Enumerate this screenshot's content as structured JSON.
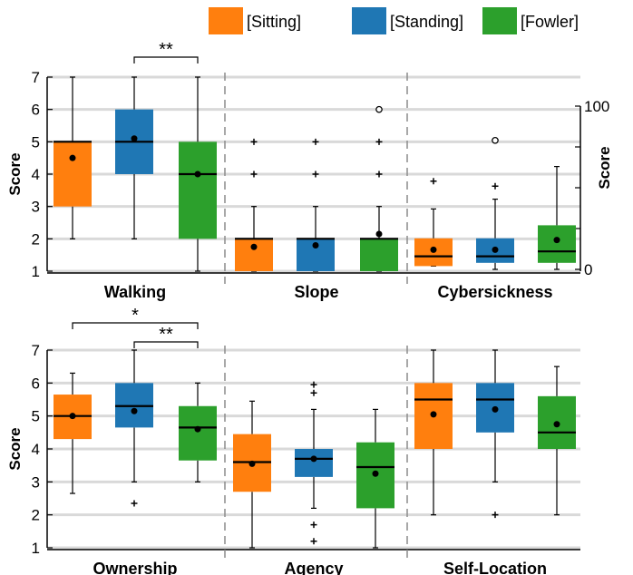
{
  "legend": [
    {
      "label": "[Sitting]",
      "color": "#ff7f0e"
    },
    {
      "label": "[Standing]",
      "color": "#1f77b4"
    },
    {
      "label": "[Fowler]",
      "color": "#2ca02c"
    }
  ],
  "chart_data": [
    {
      "type": "box",
      "ylabel": "Score",
      "right_ylabel": "Score",
      "ylim": [
        1,
        7
      ],
      "yticks": [
        "1",
        "2",
        "3",
        "4",
        "5",
        "6",
        "7"
      ],
      "right_axis": {
        "ylim": [
          0,
          100
        ],
        "ticks": [
          "0",
          "100"
        ],
        "applies_to": "Cybersickness"
      },
      "series": [
        "[Sitting]",
        "[Standing]",
        "[Fowler]"
      ],
      "groups": [
        {
          "label": "Walking",
          "boxes": [
            {
              "series": "[Sitting]",
              "whisker_low": 2,
              "q1": 3,
              "median": 5,
              "q3": 5,
              "whisker_high": 7,
              "mean": 4.5,
              "outliers": []
            },
            {
              "series": "[Standing]",
              "whisker_low": 2,
              "q1": 4,
              "median": 5,
              "q3": 6,
              "whisker_high": 7,
              "mean": 5.1,
              "outliers": []
            },
            {
              "series": "[Fowler]",
              "whisker_low": 1,
              "q1": 2,
              "median": 4,
              "q3": 5,
              "whisker_high": 7,
              "mean": 4.0,
              "outliers": []
            }
          ],
          "significance": [
            {
              "from": "[Standing]",
              "to": "[Fowler]",
              "label": "**"
            }
          ]
        },
        {
          "label": "Slope",
          "boxes": [
            {
              "series": "[Sitting]",
              "whisker_low": 1,
              "q1": 1,
              "median": 2,
              "q3": 2,
              "whisker_high": 3,
              "mean": 1.75,
              "outliers": [
                {
                  "value": 4,
                  "marker": "+"
                },
                {
                  "value": 5,
                  "marker": "+"
                }
              ]
            },
            {
              "series": "[Standing]",
              "whisker_low": 1,
              "q1": 1,
              "median": 2,
              "q3": 2,
              "whisker_high": 3,
              "mean": 1.8,
              "outliers": [
                {
                  "value": 4,
                  "marker": "+"
                },
                {
                  "value": 5,
                  "marker": "+"
                }
              ]
            },
            {
              "series": "[Fowler]",
              "whisker_low": 1,
              "q1": 1,
              "median": 2,
              "q3": 2,
              "whisker_high": 3,
              "mean": 2.15,
              "outliers": [
                {
                  "value": 4,
                  "marker": "+"
                },
                {
                  "value": 5,
                  "marker": "+"
                },
                {
                  "value": 6,
                  "marker": "o"
                }
              ]
            }
          ],
          "significance": []
        },
        {
          "label": "Cybersickness",
          "axis": "right",
          "boxes": [
            {
              "series": "[Sitting]",
              "whisker_low": 2,
              "q1": 2,
              "median": 8,
              "q3": 19,
              "whisker_high": 37,
              "mean": 12,
              "outliers": [
                {
                  "value": 54,
                  "marker": "+"
                }
              ]
            },
            {
              "series": "[Standing]",
              "whisker_low": 0,
              "q1": 4,
              "median": 8,
              "q3": 19,
              "whisker_high": 43,
              "mean": 12,
              "outliers": [
                {
                  "value": 51,
                  "marker": "+"
                },
                {
                  "value": 79,
                  "marker": "o"
                }
              ]
            },
            {
              "series": "[Fowler]",
              "whisker_low": 0,
              "q1": 4,
              "median": 11,
              "q3": 27,
              "whisker_high": 63,
              "mean": 18,
              "outliers": []
            }
          ],
          "significance": []
        }
      ]
    },
    {
      "type": "box",
      "ylabel": "Score",
      "ylim": [
        1,
        7
      ],
      "yticks": [
        "1",
        "2",
        "3",
        "4",
        "5",
        "6",
        "7"
      ],
      "series": [
        "[Sitting]",
        "[Standing]",
        "[Fowler]"
      ],
      "groups": [
        {
          "label": "Ownership",
          "boxes": [
            {
              "series": "[Sitting]",
              "whisker_low": 2.65,
              "q1": 4.3,
              "median": 5.0,
              "q3": 5.65,
              "whisker_high": 6.3,
              "mean": 5.0,
              "outliers": []
            },
            {
              "series": "[Standing]",
              "whisker_low": 3.0,
              "q1": 4.65,
              "median": 5.3,
              "q3": 6.0,
              "whisker_high": 7.0,
              "mean": 5.15,
              "outliers": [
                {
                  "value": 2.35,
                  "marker": "+"
                }
              ]
            },
            {
              "series": "[Fowler]",
              "whisker_low": 3.0,
              "q1": 3.65,
              "median": 4.65,
              "q3": 5.3,
              "whisker_high": 6.0,
              "mean": 4.6,
              "outliers": []
            }
          ],
          "significance": [
            {
              "from": "[Sitting]",
              "to": "[Fowler]",
              "label": "*"
            },
            {
              "from": "[Standing]",
              "to": "[Fowler]",
              "label": "**"
            }
          ]
        },
        {
          "label": "Agency",
          "boxes": [
            {
              "series": "[Sitting]",
              "whisker_low": 1.0,
              "q1": 2.7,
              "median": 3.6,
              "q3": 4.45,
              "whisker_high": 5.45,
              "mean": 3.55,
              "outliers": []
            },
            {
              "series": "[Standing]",
              "whisker_low": 2.2,
              "q1": 3.15,
              "median": 3.7,
              "q3": 4.0,
              "whisker_high": 5.2,
              "mean": 3.7,
              "outliers": [
                {
                  "value": 1.2,
                  "marker": "+"
                },
                {
                  "value": 1.7,
                  "marker": "+"
                },
                {
                  "value": 5.7,
                  "marker": "+"
                },
                {
                  "value": 5.95,
                  "marker": "+"
                }
              ]
            },
            {
              "series": "[Fowler]",
              "whisker_low": 1.0,
              "q1": 2.2,
              "median": 3.45,
              "q3": 4.2,
              "whisker_high": 5.2,
              "mean": 3.25,
              "outliers": []
            }
          ],
          "significance": []
        },
        {
          "label": "Self-Location",
          "boxes": [
            {
              "series": "[Sitting]",
              "whisker_low": 2.0,
              "q1": 4.0,
              "median": 5.5,
              "q3": 6.0,
              "whisker_high": 7.0,
              "mean": 5.05,
              "outliers": []
            },
            {
              "series": "[Standing]",
              "whisker_low": 3.0,
              "q1": 4.5,
              "median": 5.5,
              "q3": 6.0,
              "whisker_high": 7.0,
              "mean": 5.2,
              "outliers": [
                {
                  "value": 2.0,
                  "marker": "+"
                }
              ]
            },
            {
              "series": "[Fowler]",
              "whisker_low": 2.0,
              "q1": 4.0,
              "median": 4.5,
              "q3": 5.6,
              "whisker_high": 6.5,
              "mean": 4.75,
              "outliers": []
            }
          ],
          "significance": []
        }
      ]
    }
  ]
}
